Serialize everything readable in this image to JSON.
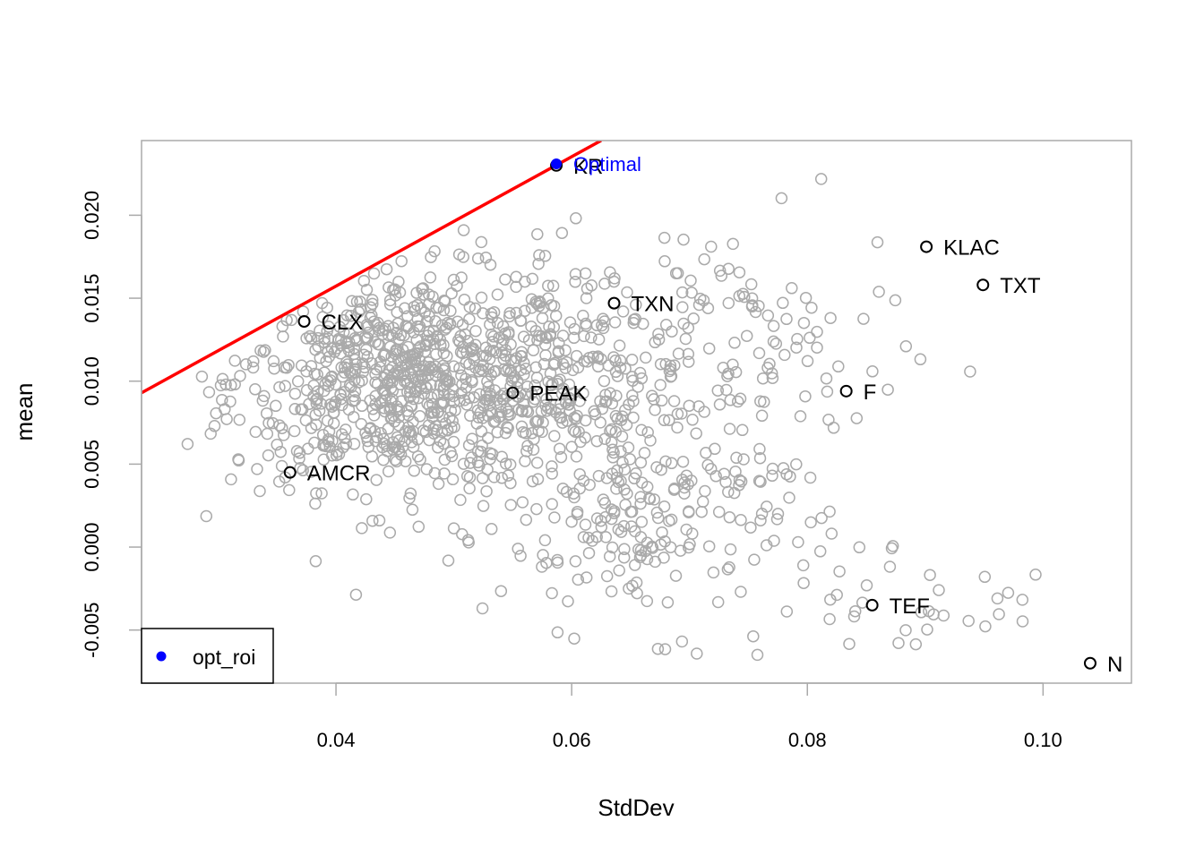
{
  "chart_data": {
    "type": "scatter",
    "xlabel": "StdDev",
    "ylabel": "mean",
    "xlim": [
      0.0235,
      0.1075
    ],
    "ylim": [
      -0.0082,
      0.0245
    ],
    "x_ticks": [
      0.04,
      0.06,
      0.08,
      0.1
    ],
    "x_tick_labels": [
      "0.04",
      "0.06",
      "0.08",
      "0.10"
    ],
    "y_ticks": [
      -0.005,
      0.0,
      0.005,
      0.01,
      0.015,
      0.02
    ],
    "y_tick_labels": [
      "-0.005",
      "0.000",
      "0.005",
      "0.010",
      "0.015",
      "0.020"
    ],
    "grid": false,
    "legend": {
      "position": "bottom-left",
      "entries": [
        {
          "label": "opt_roi",
          "color": "#0000ff",
          "marker": "filled-circle"
        }
      ]
    },
    "colors": {
      "random_portfolios": "#aaaaaa",
      "assets": "#000000",
      "optimal": "#0000ff",
      "line": "#ff0000"
    },
    "assets": [
      {
        "label": "KR",
        "x": 0.0587,
        "y": 0.023
      },
      {
        "label": "KLAC",
        "x": 0.0901,
        "y": 0.0181
      },
      {
        "label": "TXT",
        "x": 0.0949,
        "y": 0.0158
      },
      {
        "label": "TXN",
        "x": 0.0636,
        "y": 0.0147
      },
      {
        "label": "CLX",
        "x": 0.0373,
        "y": 0.0136
      },
      {
        "label": "PEAK",
        "x": 0.055,
        "y": 0.0093
      },
      {
        "label": "F",
        "x": 0.0833,
        "y": 0.0094
      },
      {
        "label": "AMCR",
        "x": 0.0361,
        "y": 0.0045
      },
      {
        "label": "TEF",
        "x": 0.0855,
        "y": -0.0035
      },
      {
        "label": "N",
        "x": 0.104,
        "y": -0.007
      }
    ],
    "optimal": {
      "label": "Optimal",
      "x": 0.0587,
      "y": 0.0231
    },
    "tangent_line": {
      "x": [
        0.0235,
        0.0625
      ],
      "y": [
        0.0093,
        0.0245
      ]
    },
    "random_portfolio_count": 1400
  }
}
